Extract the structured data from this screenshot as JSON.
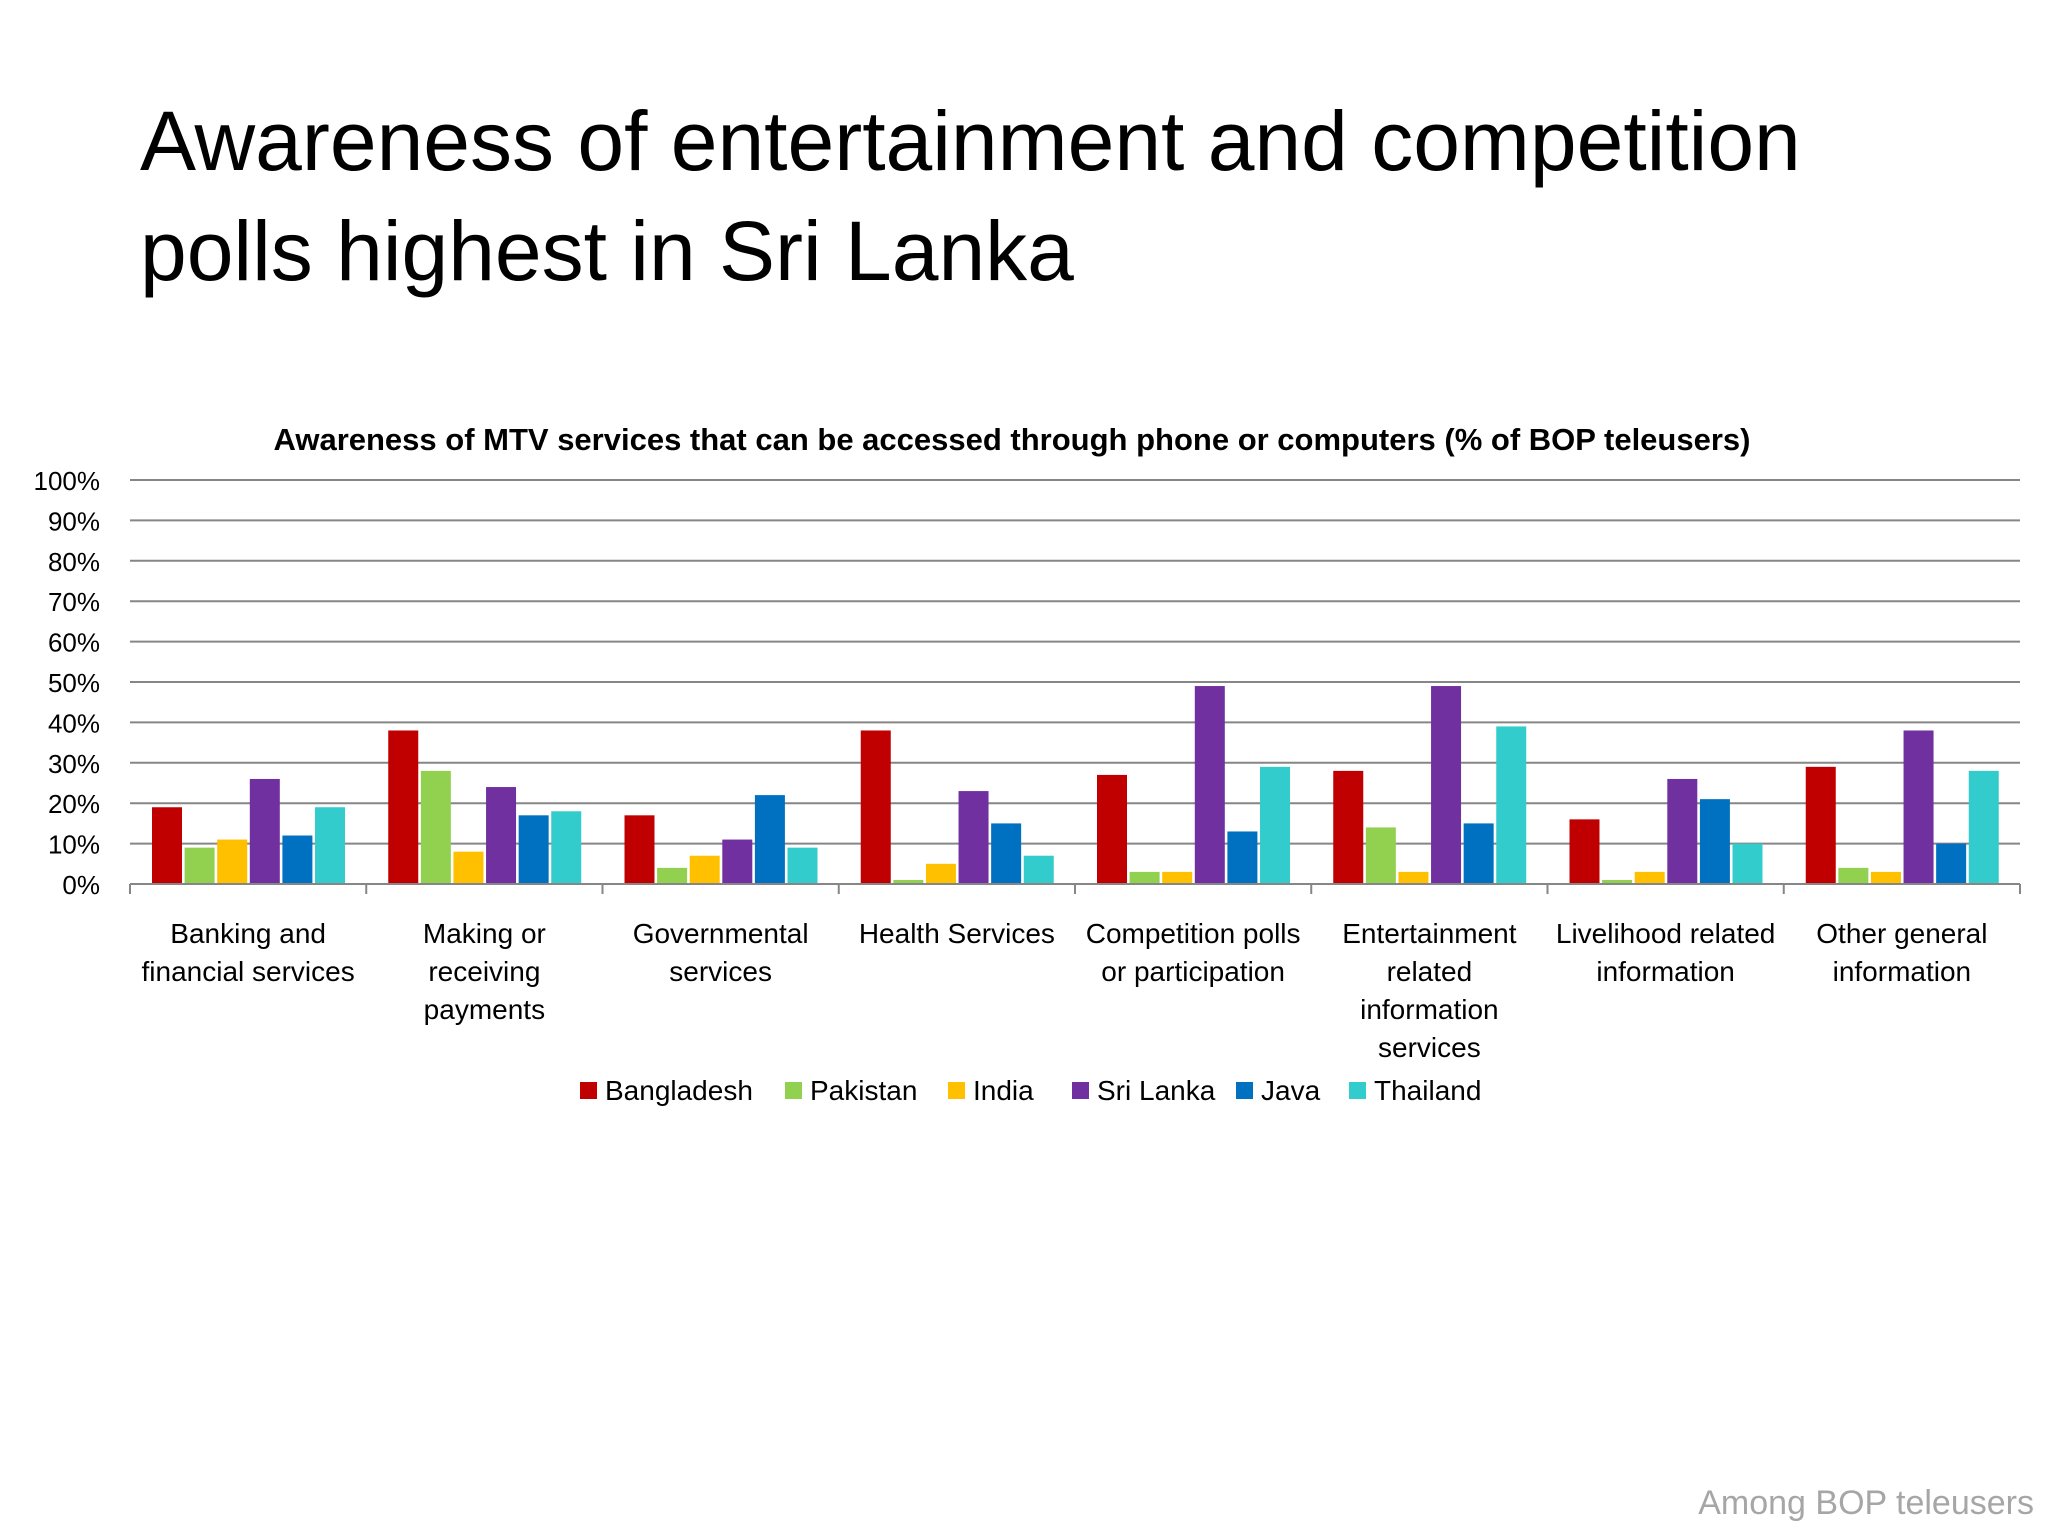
{
  "slide": {
    "title_line1": "Awareness of entertainment and competition",
    "title_line2": "polls highest in Sri Lanka",
    "footer": "Among BOP teleusers"
  },
  "chart_data": {
    "type": "bar",
    "title": "Awareness of MTV services that can be accessed through phone or computers (% of BOP teleusers)",
    "xlabel": "",
    "ylabel": "",
    "ylim": [
      0,
      100
    ],
    "yticks": [
      "0%",
      "10%",
      "20%",
      "30%",
      "40%",
      "50%",
      "60%",
      "70%",
      "80%",
      "90%",
      "100%"
    ],
    "grid": true,
    "legend_position": "bottom",
    "categories": [
      [
        "Banking and",
        "financial services"
      ],
      [
        "Making or",
        "receiving",
        "payments"
      ],
      [
        "Governmental",
        "services"
      ],
      [
        "Health Services"
      ],
      [
        "Competition polls",
        "or participation"
      ],
      [
        "Entertainment",
        "related",
        "information",
        "services"
      ],
      [
        "Livelihood related",
        "information"
      ],
      [
        "Other general",
        "information"
      ]
    ],
    "series": [
      {
        "name": "Bangladesh",
        "color": "#C00000",
        "values": [
          19,
          38,
          17,
          38,
          27,
          28,
          16,
          29
        ]
      },
      {
        "name": "Pakistan",
        "color": "#92D050",
        "values": [
          9,
          28,
          4,
          1,
          3,
          14,
          1,
          4
        ]
      },
      {
        "name": "India",
        "color": "#FFC000",
        "values": [
          11,
          8,
          7,
          5,
          3,
          3,
          3,
          3
        ]
      },
      {
        "name": "Sri Lanka",
        "color": "#7030A0",
        "values": [
          26,
          24,
          11,
          23,
          49,
          49,
          26,
          38
        ]
      },
      {
        "name": "Java",
        "color": "#0070C0",
        "values": [
          12,
          17,
          22,
          15,
          13,
          15,
          21,
          10
        ]
      },
      {
        "name": "Thailand",
        "color": "#33CCCC",
        "values": [
          19,
          18,
          9,
          7,
          29,
          39,
          10,
          28
        ]
      }
    ]
  }
}
